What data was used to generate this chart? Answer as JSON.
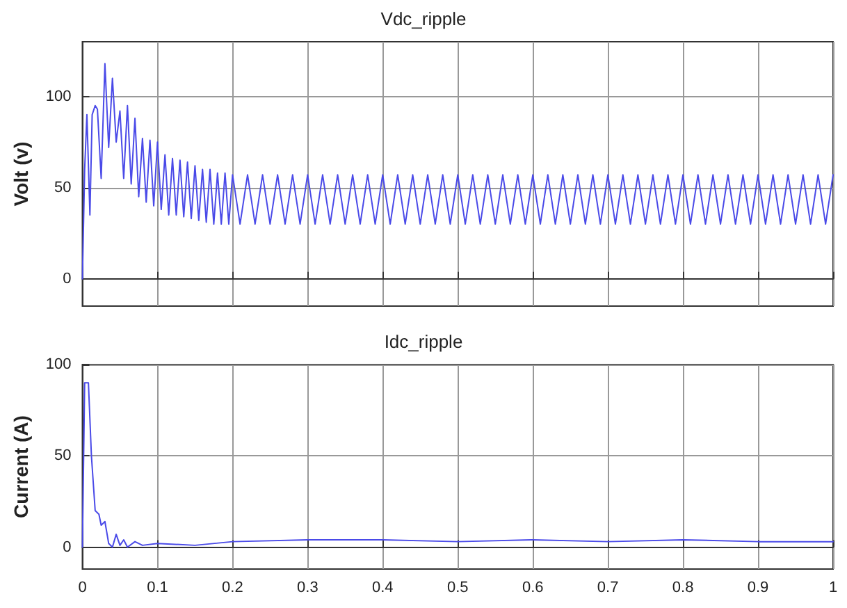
{
  "chart_data": [
    {
      "type": "line",
      "title": "Vdc_ripple",
      "ylabel": "Volt (v)",
      "xlim": [
        0,
        1
      ],
      "ylim": [
        -15,
        130
      ],
      "xticks": [
        0,
        0.1,
        0.2,
        0.3,
        0.4,
        0.5,
        0.6,
        0.7,
        0.8,
        0.9,
        1
      ],
      "yticks": [
        0,
        50,
        100
      ],
      "grid": true,
      "tick_labels": "y",
      "marker": "none",
      "line_style": "solid",
      "series": [
        {
          "color": "#4a4ae8",
          "x": [
            0,
            0.003,
            0.006,
            0.01,
            0.013,
            0.017,
            0.02,
            0.025,
            0.03,
            0.035,
            0.04,
            0.045,
            0.05,
            0.055,
            0.06,
            0.065,
            0.07,
            0.075,
            0.08,
            0.085,
            0.09,
            0.095,
            0.1,
            0.105,
            0.11,
            0.115,
            0.12,
            0.125,
            0.13,
            0.135,
            0.14,
            0.145,
            0.15,
            0.155,
            0.16,
            0.165,
            0.17,
            0.175,
            0.18,
            0.185,
            0.19,
            0.195,
            0.2,
            0.21,
            0.22,
            0.23,
            0.24,
            0.25,
            0.26,
            0.27,
            0.28,
            0.29,
            0.3,
            0.31,
            0.32,
            0.33,
            0.34,
            0.35,
            0.36,
            0.37,
            0.38,
            0.39,
            0.4,
            0.41,
            0.42,
            0.43,
            0.44,
            0.45,
            0.46,
            0.47,
            0.48,
            0.49,
            0.5,
            0.51,
            0.52,
            0.53,
            0.54,
            0.55,
            0.56,
            0.57,
            0.58,
            0.59,
            0.6,
            0.61,
            0.62,
            0.63,
            0.64,
            0.65,
            0.66,
            0.67,
            0.68,
            0.69,
            0.7,
            0.71,
            0.72,
            0.73,
            0.74,
            0.75,
            0.76,
            0.77,
            0.78,
            0.79,
            0.8,
            0.81,
            0.82,
            0.83,
            0.84,
            0.85,
            0.86,
            0.87,
            0.88,
            0.89,
            0.9,
            0.91,
            0.92,
            0.93,
            0.94,
            0.95,
            0.96,
            0.97,
            0.98,
            0.99,
            1
          ],
          "values": [
            0,
            60,
            90,
            35,
            90,
            95,
            93,
            55,
            118,
            72,
            110,
            75,
            92,
            55,
            95,
            52,
            88,
            45,
            77,
            42,
            76,
            40,
            75,
            38,
            68,
            35,
            66,
            35,
            65,
            34,
            64,
            33,
            62,
            32,
            60,
            31,
            60,
            30,
            58,
            30,
            58,
            30,
            57,
            30,
            57,
            30,
            57,
            30,
            57,
            30,
            57,
            30,
            57,
            30,
            57,
            30,
            57,
            30,
            57,
            30,
            57,
            30,
            57,
            30,
            57,
            30,
            57,
            30,
            57,
            30,
            57,
            30,
            57,
            30,
            57,
            30,
            57,
            30,
            57,
            30,
            57,
            30,
            57,
            30,
            57,
            30,
            57,
            30,
            57,
            30,
            57,
            30,
            57,
            30,
            57,
            30,
            57,
            30,
            57,
            30,
            57,
            30,
            57,
            30,
            57,
            30,
            57,
            30,
            57,
            30,
            57,
            30,
            57,
            30,
            57,
            30,
            57,
            30,
            57,
            30,
            57,
            30,
            57
          ]
        }
      ]
    },
    {
      "type": "line",
      "title": "Idc_ripple",
      "ylabel": "Current (A)",
      "xlim": [
        0,
        1
      ],
      "ylim": [
        -12,
        100
      ],
      "xticks": [
        0,
        0.1,
        0.2,
        0.3,
        0.4,
        0.5,
        0.6,
        0.7,
        0.8,
        0.9,
        1
      ],
      "yticks": [
        0,
        50,
        100
      ],
      "grid": true,
      "marker": "none",
      "line_style": "solid",
      "series": [
        {
          "color": "#4a4ae8",
          "x": [
            0,
            0.003,
            0.008,
            0.012,
            0.017,
            0.022,
            0.025,
            0.03,
            0.035,
            0.04,
            0.045,
            0.05,
            0.055,
            0.06,
            0.07,
            0.08,
            0.1,
            0.15,
            0.2,
            0.3,
            0.4,
            0.5,
            0.6,
            0.7,
            0.8,
            0.9,
            1
          ],
          "values": [
            0,
            90,
            90,
            50,
            20,
            18,
            12,
            14,
            2,
            0,
            7,
            1,
            4,
            0,
            3,
            1,
            2,
            1,
            3,
            4,
            4,
            3,
            4,
            3,
            4,
            3,
            3
          ]
        }
      ]
    }
  ]
}
